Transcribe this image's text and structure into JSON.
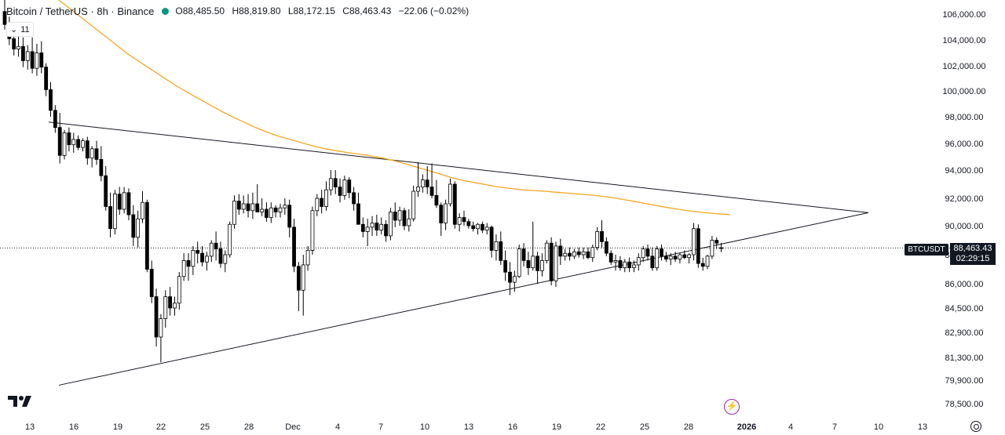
{
  "legend": {
    "symbol": "Bitcoin / TetherUS · 8h · Binance",
    "open_label": "O",
    "open": "88,485.50",
    "high_label": "H",
    "high": "88,819.80",
    "low_label": "L",
    "low": "88,172.15",
    "close_label": "C",
    "close": "88,463.43",
    "change": "−22.06 (−0.02%)",
    "collapse_count": "11",
    "status_color": "#089981"
  },
  "price_tag": {
    "ticker": "BTCUSDT",
    "last_price": "88,463.43",
    "countdown": "02:29:15"
  },
  "icons": {
    "logo": "tradingview-logo-icon",
    "flash": "flash-icon",
    "settings": "settings-icon"
  },
  "chart_data": {
    "type": "candlestick",
    "interval": "8h",
    "up_color": "#ffffff",
    "down_color": "#000000",
    "ma_color": "#f5a623",
    "y_ticks": [
      "106,000.00",
      "104,000.00",
      "102,000.00",
      "100,000.00",
      "98,000.00",
      "96,000.00",
      "94,000.00",
      "92,000.00",
      "90,000.00",
      "88,000.00",
      "86,000.00",
      "84,500.00",
      "82,900.00",
      "81,300.00",
      "79,900.00",
      "78,500.00"
    ],
    "y_tick_values": [
      106000,
      104000,
      102000,
      100000,
      98000,
      96000,
      94000,
      92000,
      90000,
      88000,
      86000,
      84500,
      82900,
      81300,
      79900,
      78500
    ],
    "x_ticks": [
      "13",
      "16",
      "19",
      "22",
      "25",
      "28",
      "Dec",
      "4",
      "7",
      "10",
      "13",
      "16",
      "19",
      "22",
      "25",
      "28",
      "2026",
      "4",
      "7",
      "10",
      "13"
    ],
    "last_price_value": 88463.43,
    "candles_ohlc": [
      [
        106200,
        107300,
        104800,
        105200
      ],
      [
        105200,
        105800,
        103600,
        104100
      ],
      [
        104100,
        104800,
        102800,
        103300
      ],
      [
        103300,
        104300,
        102700,
        103500
      ],
      [
        103500,
        104200,
        101900,
        102400
      ],
      [
        102400,
        103600,
        101700,
        103100
      ],
      [
        103100,
        104200,
        101400,
        101800
      ],
      [
        101800,
        103700,
        101200,
        103000
      ],
      [
        103000,
        103900,
        101400,
        101900
      ],
      [
        101900,
        102200,
        99600,
        100100
      ],
      [
        100100,
        100700,
        98000,
        98500
      ],
      [
        98500,
        98900,
        96800,
        97200
      ],
      [
        97200,
        98300,
        94500,
        95100
      ],
      [
        95100,
        97000,
        94800,
        96800
      ],
      [
        96800,
        97200,
        95400,
        95900
      ],
      [
        95900,
        96800,
        95300,
        96300
      ],
      [
        96300,
        96600,
        95500,
        95700
      ],
      [
        95700,
        96400,
        95400,
        96200
      ],
      [
        96200,
        96500,
        94400,
        94900
      ],
      [
        94900,
        95800,
        94200,
        95600
      ],
      [
        95600,
        96200,
        94400,
        94800
      ],
      [
        94800,
        95800,
        93200,
        93600
      ],
      [
        93600,
        94300,
        91100,
        91400
      ],
      [
        91400,
        92400,
        89200,
        89800
      ],
      [
        89800,
        92600,
        89400,
        92300
      ],
      [
        92300,
        92800,
        90800,
        91200
      ],
      [
        91200,
        92800,
        90900,
        92400
      ],
      [
        92400,
        92700,
        90400,
        90800
      ],
      [
        90800,
        91500,
        88600,
        89200
      ],
      [
        89200,
        91100,
        88500,
        90500
      ],
      [
        90500,
        92500,
        90200,
        91700
      ],
      [
        91700,
        91900,
        86800,
        87000
      ],
      [
        87000,
        87600,
        84800,
        85200
      ],
      [
        85200,
        85700,
        82000,
        82600
      ],
      [
        82600,
        84100,
        81000,
        83800
      ],
      [
        83800,
        85600,
        83200,
        85200
      ],
      [
        85200,
        85800,
        84000,
        84500
      ],
      [
        84500,
        85200,
        84000,
        84800
      ],
      [
        84800,
        86800,
        84400,
        86500
      ],
      [
        86500,
        88100,
        86200,
        87600
      ],
      [
        87600,
        88100,
        86200,
        87200
      ],
      [
        87200,
        88600,
        86600,
        88300
      ],
      [
        88300,
        88900,
        87400,
        88100
      ],
      [
        88100,
        88600,
        87200,
        87500
      ],
      [
        87500,
        88200,
        86900,
        87900
      ],
      [
        87900,
        89000,
        87500,
        88800
      ],
      [
        88800,
        89600,
        87600,
        88400
      ],
      [
        88400,
        88900,
        87100,
        87400
      ],
      [
        87400,
        88300,
        86800,
        88000
      ],
      [
        88000,
        90300,
        87800,
        90100
      ],
      [
        90100,
        92200,
        89800,
        91800
      ],
      [
        91800,
        92300,
        90800,
        91200
      ],
      [
        91200,
        92200,
        90900,
        91600
      ],
      [
        91600,
        92300,
        90600,
        91100
      ],
      [
        91100,
        92400,
        90500,
        91600
      ],
      [
        91600,
        93000,
        91400,
        91000
      ],
      [
        91000,
        92000,
        90700,
        91200
      ],
      [
        91200,
        91700,
        90300,
        90600
      ],
      [
        90600,
        91700,
        90200,
        91300
      ],
      [
        91300,
        91500,
        90600,
        91000
      ],
      [
        91000,
        91600,
        90600,
        91300
      ],
      [
        91300,
        92000,
        90800,
        91500
      ],
      [
        91500,
        91900,
        89200,
        89900
      ],
      [
        89900,
        90500,
        86800,
        87200
      ],
      [
        87200,
        87500,
        84300,
        85600
      ],
      [
        85600,
        88000,
        84000,
        87300
      ],
      [
        87300,
        88600,
        86900,
        88300
      ],
      [
        88300,
        91400,
        88000,
        91100
      ],
      [
        91100,
        92300,
        90700,
        92000
      ],
      [
        92000,
        92600,
        90900,
        91400
      ],
      [
        91400,
        93200,
        91100,
        92600
      ],
      [
        92600,
        94000,
        92200,
        93400
      ],
      [
        93400,
        94000,
        92300,
        92800
      ],
      [
        92800,
        93400,
        91700,
        92200
      ],
      [
        92200,
        93600,
        91900,
        93300
      ],
      [
        93300,
        93500,
        92000,
        92400
      ],
      [
        92400,
        92800,
        91100,
        91600
      ],
      [
        91600,
        92400,
        91300,
        90100
      ],
      [
        90100,
        90600,
        89200,
        89600
      ],
      [
        89600,
        90500,
        88600,
        89900
      ],
      [
        89900,
        90700,
        89300,
        90200
      ],
      [
        90200,
        90800,
        89300,
        89700
      ],
      [
        89700,
        90600,
        89400,
        90100
      ],
      [
        90100,
        90400,
        88900,
        89300
      ],
      [
        89300,
        91300,
        89000,
        91000
      ],
      [
        91000,
        91700,
        89900,
        90400
      ],
      [
        90400,
        91400,
        90000,
        91100
      ],
      [
        91100,
        91300,
        89700,
        90000
      ],
      [
        90000,
        91200,
        89600,
        90500
      ],
      [
        90500,
        92900,
        90300,
        92500
      ],
      [
        92500,
        94600,
        92100,
        92800
      ],
      [
        92800,
        93700,
        92400,
        93300
      ],
      [
        93300,
        94300,
        92300,
        92800
      ],
      [
        92800,
        94500,
        92000,
        92200
      ],
      [
        92200,
        93300,
        91300,
        91500
      ],
      [
        91500,
        91700,
        89300,
        90200
      ],
      [
        90200,
        91900,
        89700,
        91600
      ],
      [
        91600,
        93400,
        91400,
        93000
      ],
      [
        93000,
        93200,
        89800,
        90100
      ],
      [
        90100,
        90900,
        89600,
        90600
      ],
      [
        90600,
        91100,
        90000,
        90300
      ],
      [
        90300,
        90500,
        89800,
        90000
      ],
      [
        90000,
        90300,
        89600,
        89800
      ],
      [
        89800,
        90200,
        89400,
        90100
      ],
      [
        90100,
        90300,
        89500,
        89700
      ],
      [
        89700,
        90200,
        89400,
        89900
      ],
      [
        89900,
        90000,
        87800,
        88300
      ],
      [
        88300,
        89400,
        87600,
        88900
      ],
      [
        88900,
        89600,
        87300,
        87600
      ],
      [
        87600,
        88300,
        86200,
        86800
      ],
      [
        86800,
        87500,
        85300,
        86100
      ],
      [
        86100,
        86900,
        85500,
        86500
      ],
      [
        86500,
        88700,
        86400,
        88400
      ],
      [
        88400,
        88800,
        87200,
        87600
      ],
      [
        87600,
        88200,
        86600,
        87100
      ],
      [
        87100,
        90300,
        86900,
        87900
      ],
      [
        87900,
        88200,
        86000,
        86900
      ],
      [
        86900,
        88100,
        86500,
        87600
      ],
      [
        87600,
        89000,
        87400,
        88800
      ],
      [
        88800,
        89200,
        85900,
        86200
      ],
      [
        86200,
        88900,
        85800,
        88600
      ],
      [
        88600,
        89100,
        87300,
        87900
      ],
      [
        87900,
        88400,
        87600,
        88100
      ],
      [
        88100,
        88500,
        87600,
        87900
      ],
      [
        87900,
        88400,
        87700,
        88200
      ],
      [
        88200,
        88500,
        87800,
        88000
      ],
      [
        88000,
        88500,
        87700,
        88200
      ],
      [
        88200,
        88500,
        87700,
        87800
      ],
      [
        87800,
        88700,
        87500,
        88500
      ],
      [
        88500,
        89900,
        88300,
        89600
      ],
      [
        89600,
        90400,
        88500,
        88900
      ],
      [
        88900,
        89200,
        87900,
        88100
      ],
      [
        88100,
        88300,
        87300,
        87500
      ],
      [
        87500,
        88000,
        86900,
        87600
      ],
      [
        87600,
        87900,
        86900,
        87100
      ],
      [
        87100,
        87700,
        86800,
        87500
      ],
      [
        87500,
        87800,
        86800,
        87100
      ],
      [
        87100,
        87600,
        86800,
        87300
      ],
      [
        87300,
        88100,
        86900,
        87800
      ],
      [
        87800,
        88600,
        87500,
        88400
      ],
      [
        88400,
        88700,
        87600,
        87900
      ],
      [
        87900,
        88500,
        86900,
        87100
      ],
      [
        87100,
        88600,
        86900,
        88400
      ],
      [
        88400,
        88700,
        87600,
        87900
      ],
      [
        87900,
        88200,
        87500,
        87700
      ],
      [
        87700,
        88100,
        87300,
        87900
      ],
      [
        87900,
        88200,
        87500,
        87700
      ],
      [
        87700,
        88100,
        87400,
        88000
      ],
      [
        88000,
        88300,
        87700,
        87800
      ],
      [
        87800,
        88100,
        87400,
        88000
      ],
      [
        88000,
        90200,
        87600,
        89800
      ],
      [
        89800,
        90100,
        87100,
        87400
      ],
      [
        87400,
        87800,
        86900,
        87200
      ],
      [
        87200,
        88000,
        87000,
        87900
      ],
      [
        87900,
        89300,
        87700,
        89000
      ],
      [
        89000,
        89200,
        88400,
        88800
      ],
      [
        88485.5,
        88819.8,
        88172.15,
        88463.43
      ]
    ],
    "ma_values": [
      107800,
      107100,
      106400,
      105700,
      105000,
      104300,
      103600,
      102900,
      102300,
      101700,
      101100,
      100500,
      99950,
      99450,
      98950,
      98450,
      98000,
      97600,
      97200,
      96850,
      96550,
      96300,
      96050,
      95800,
      95600,
      95450,
      95300,
      95200,
      95050,
      94900,
      94700,
      94450,
      94200,
      93950,
      93700,
      93450,
      93250,
      93100,
      92950,
      92800,
      92700,
      92600,
      92550,
      92500,
      92430,
      92360,
      92300,
      92230,
      92140,
      92020,
      91880,
      91730,
      91570,
      91410,
      91270,
      91140,
      91030,
      90940,
      90860,
      90800
    ],
    "trendlines": {
      "upper": {
        "x": [
          13,
          111
        ],
        "y": [
          97600,
          90950
        ]
      },
      "lower": {
        "x": [
          11,
          111
        ],
        "y": [
          79600,
          90950
        ]
      }
    }
  }
}
